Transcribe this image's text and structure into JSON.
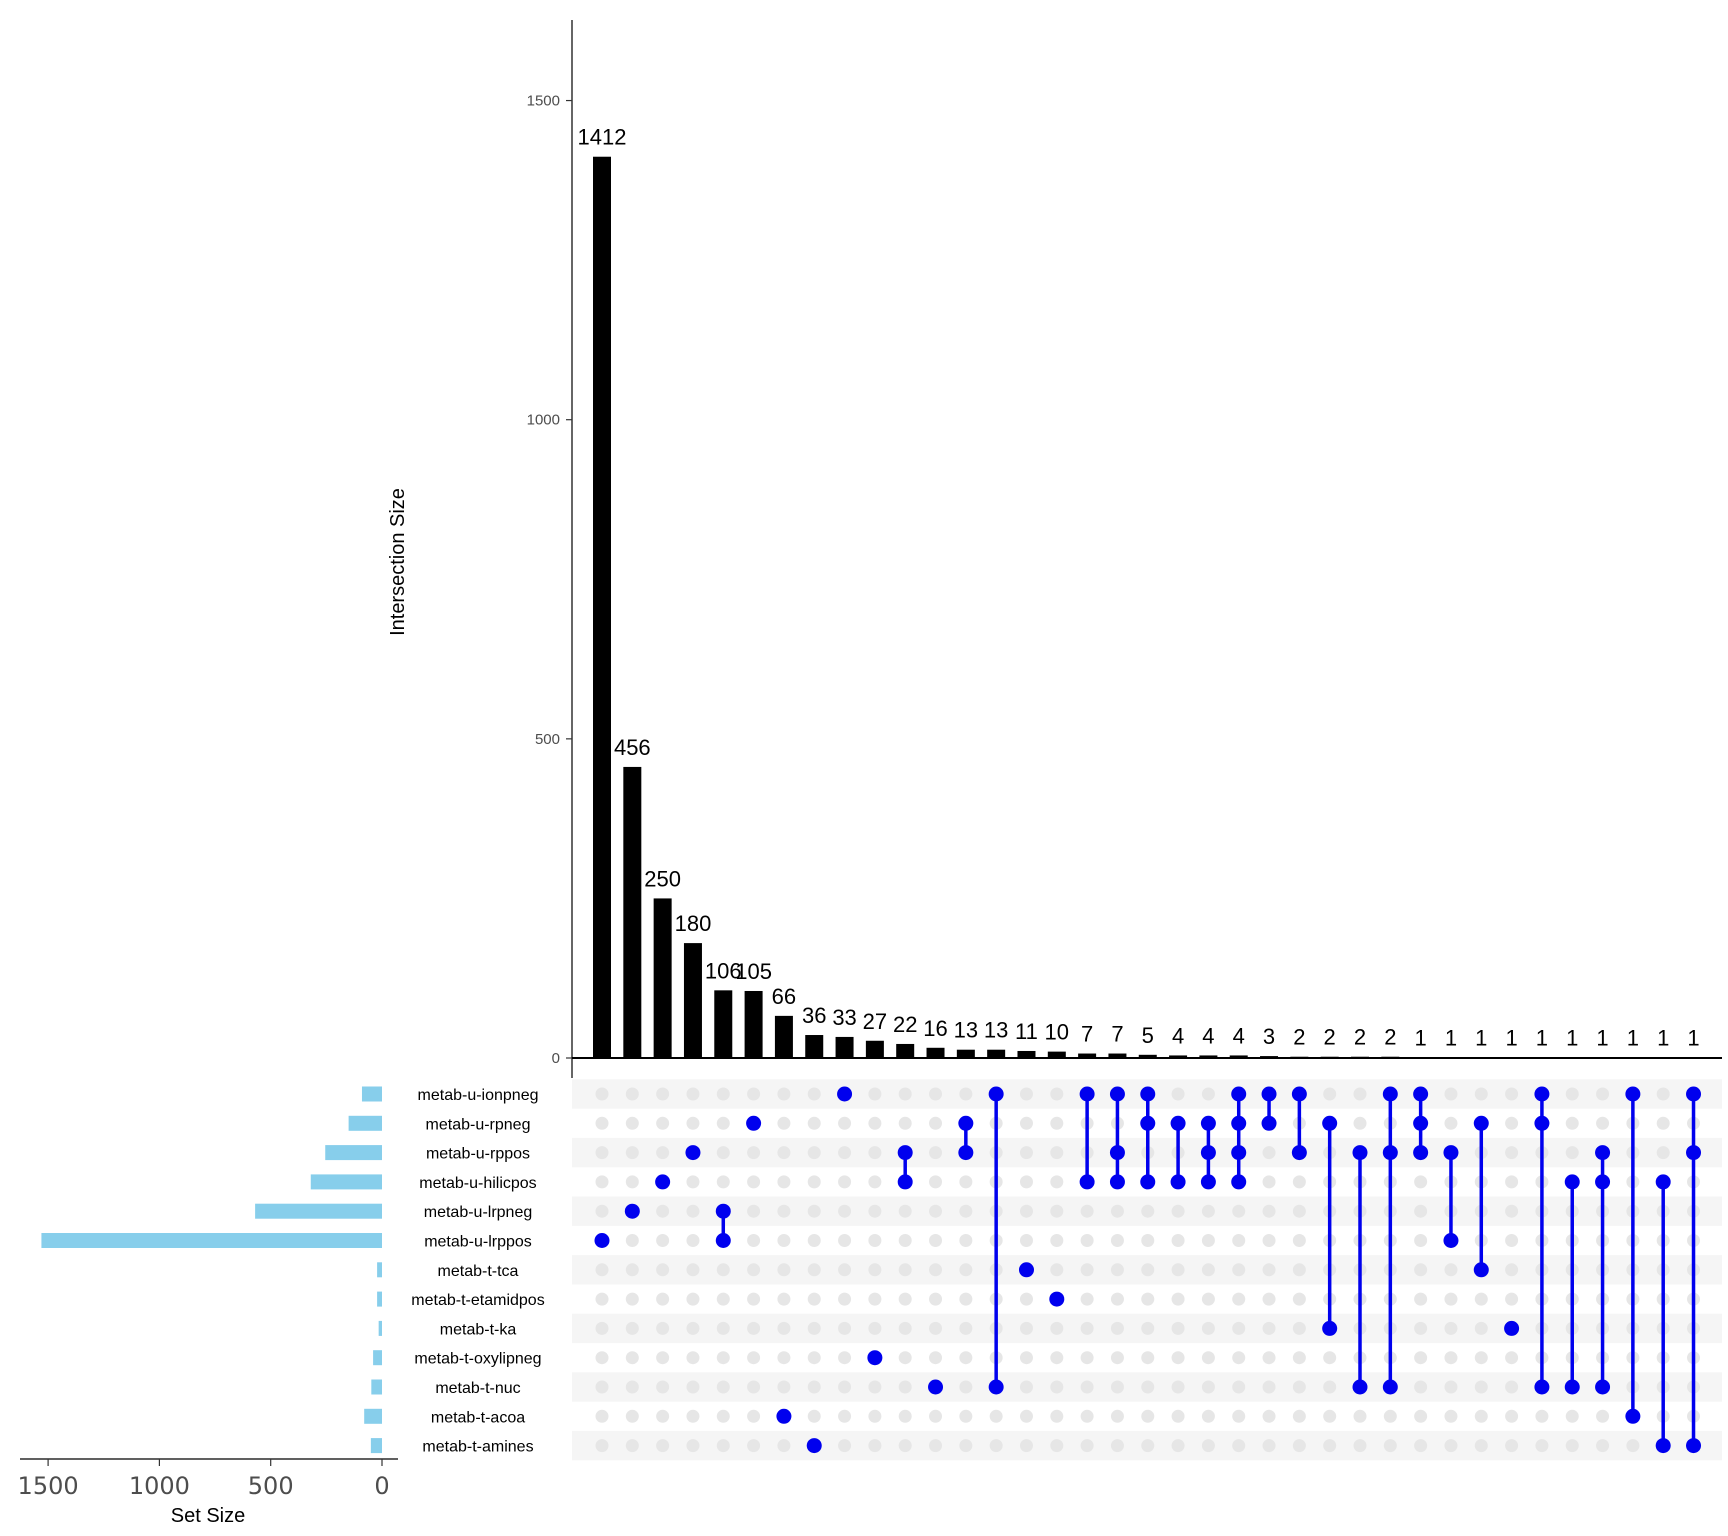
{
  "chart_data": {
    "type": "upset",
    "intersection_axis": {
      "title": "Intersection Size",
      "ticks": [
        0,
        500,
        1000,
        1500
      ],
      "ylim": [
        0,
        1625
      ]
    },
    "set_size_axis": {
      "title": "Set Size",
      "ticks": [
        1500,
        1000,
        500,
        0
      ],
      "xlim": [
        0,
        1580
      ]
    },
    "sets": [
      {
        "name": "metab-u-ionpneg",
        "size": 90
      },
      {
        "name": "metab-u-rpneg",
        "size": 150
      },
      {
        "name": "metab-u-rppos",
        "size": 255
      },
      {
        "name": "metab-u-hilicpos",
        "size": 320
      },
      {
        "name": "metab-u-lrpneg",
        "size": 570
      },
      {
        "name": "metab-u-lrppos",
        "size": 1530
      },
      {
        "name": "metab-t-tca",
        "size": 22
      },
      {
        "name": "metab-t-etamidpos",
        "size": 22
      },
      {
        "name": "metab-t-ka",
        "size": 15
      },
      {
        "name": "metab-t-oxylipneg",
        "size": 40
      },
      {
        "name": "metab-t-nuc",
        "size": 48
      },
      {
        "name": "metab-t-acoa",
        "size": 80
      },
      {
        "name": "metab-t-amines",
        "size": 50
      }
    ],
    "intersections": [
      {
        "size": 1412,
        "sets": [
          5
        ]
      },
      {
        "size": 456,
        "sets": [
          4
        ]
      },
      {
        "size": 250,
        "sets": [
          3
        ]
      },
      {
        "size": 180,
        "sets": [
          2
        ]
      },
      {
        "size": 106,
        "sets": [
          4,
          5
        ]
      },
      {
        "size": 105,
        "sets": [
          1
        ]
      },
      {
        "size": 66,
        "sets": [
          11
        ]
      },
      {
        "size": 36,
        "sets": [
          12
        ]
      },
      {
        "size": 33,
        "sets": [
          0
        ]
      },
      {
        "size": 27,
        "sets": [
          9
        ]
      },
      {
        "size": 22,
        "sets": [
          2,
          3
        ]
      },
      {
        "size": 16,
        "sets": [
          10
        ]
      },
      {
        "size": 13,
        "sets": [
          1,
          2
        ]
      },
      {
        "size": 13,
        "sets": [
          0,
          10
        ]
      },
      {
        "size": 11,
        "sets": [
          6
        ]
      },
      {
        "size": 10,
        "sets": [
          7
        ]
      },
      {
        "size": 7,
        "sets": [
          0,
          3
        ]
      },
      {
        "size": 7,
        "sets": [
          0,
          2,
          3
        ]
      },
      {
        "size": 5,
        "sets": [
          0,
          1,
          3
        ]
      },
      {
        "size": 4,
        "sets": [
          1,
          3
        ]
      },
      {
        "size": 4,
        "sets": [
          1,
          2,
          3
        ]
      },
      {
        "size": 4,
        "sets": [
          0,
          1,
          2,
          3
        ]
      },
      {
        "size": 3,
        "sets": [
          0,
          1
        ]
      },
      {
        "size": 2,
        "sets": [
          0,
          2
        ]
      },
      {
        "size": 2,
        "sets": [
          1,
          8
        ]
      },
      {
        "size": 2,
        "sets": [
          2,
          10
        ]
      },
      {
        "size": 2,
        "sets": [
          0,
          2,
          10
        ]
      },
      {
        "size": 1,
        "sets": [
          0,
          1,
          2
        ]
      },
      {
        "size": 1,
        "sets": [
          2,
          5
        ]
      },
      {
        "size": 1,
        "sets": [
          1,
          6
        ]
      },
      {
        "size": 1,
        "sets": [
          8
        ]
      },
      {
        "size": 1,
        "sets": [
          0,
          1,
          10
        ]
      },
      {
        "size": 1,
        "sets": [
          3,
          10
        ]
      },
      {
        "size": 1,
        "sets": [
          2,
          3,
          10
        ]
      },
      {
        "size": 1,
        "sets": [
          0,
          11
        ]
      },
      {
        "size": 1,
        "sets": [
          3,
          12
        ]
      },
      {
        "size": 1,
        "sets": [
          0,
          2,
          12
        ]
      }
    ],
    "grid": false
  },
  "colors": {
    "bar": "#000000",
    "set_bar": "#87ceeb",
    "dot_active": "#0000ee",
    "dot_inactive": "#e6e6e6",
    "stripe": "#f5f5f5",
    "axis": "#000000"
  }
}
